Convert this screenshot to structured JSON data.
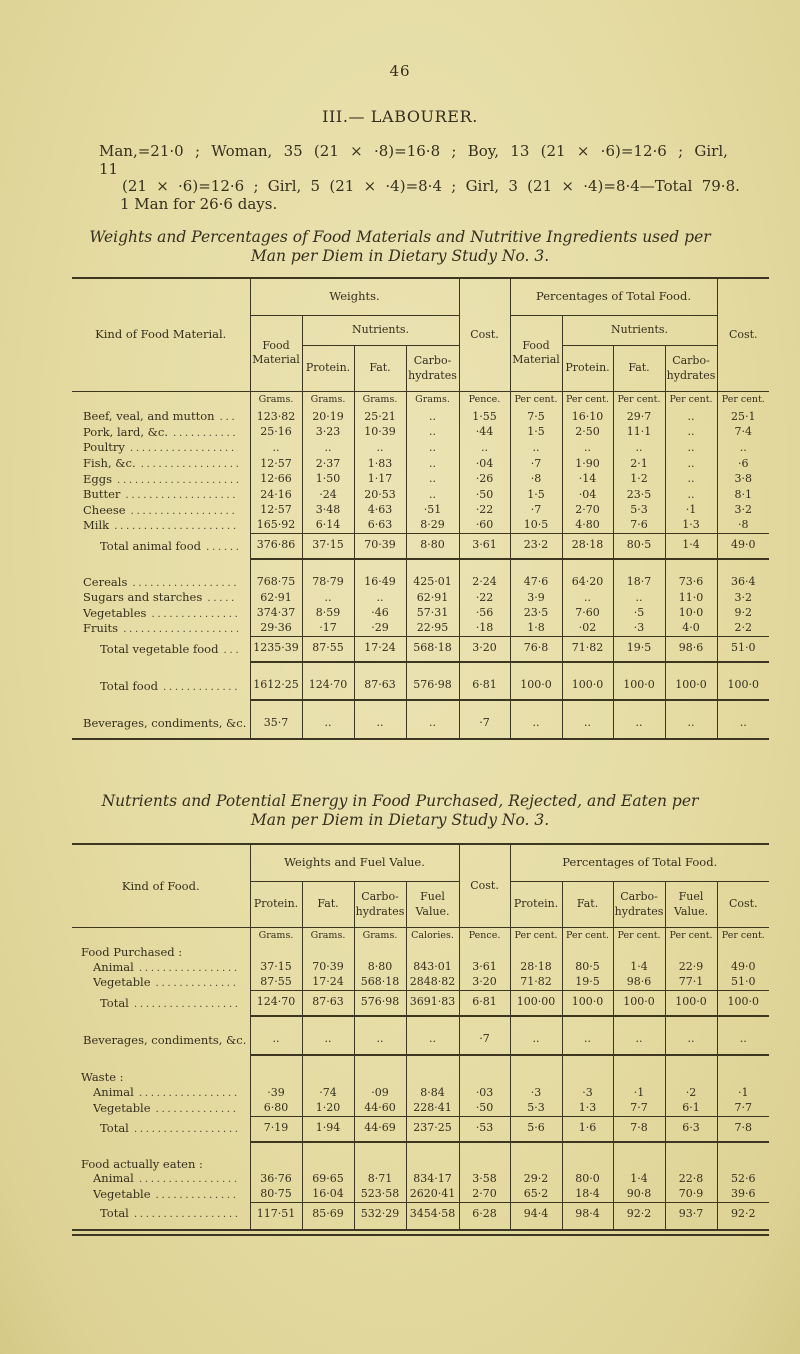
{
  "leader": "....................................................................................",
  "page": {
    "number": "46",
    "section_title": "III.— LABOURER.",
    "intro_lines": [
      "Man,=21·0 ; Woman, 35 (21 × ·8)=16·8 ; Boy, 13 (21 × ·6)=12·6 ; Girl, 11",
      "(21 × ·6)=12·6 ; Girl, 5 (21 × ·4)=8·4 ; Girl, 3 (21 × ·4)=8·4—Total 79·8.",
      "1 Man for 26·6 days."
    ]
  },
  "table1": {
    "caption_lines": [
      "Weights and Percentages of Food Materials and Nutritive Ingredients used per",
      "Man per Diem in Dietary Study No. 3."
    ],
    "header": {
      "kind": "Kind of Food Material.",
      "weights_group": "Weights.",
      "percent_group": "Percentages of Total Food.",
      "cost": "Cost.",
      "food_material": "Food Material",
      "nutrients": "Nutrients.",
      "protein": "Protein.",
      "fat": "Fat.",
      "carbohydrates": "Carbo-hydrates"
    },
    "units": [
      "Grams.",
      "Grams.",
      "Grams.",
      "Grams.",
      "Pence.",
      "Per cent.",
      "Per cent.",
      "Per cent.",
      "Per cent.",
      "Per cent."
    ],
    "rows": [
      {
        "label": "Beef, veal, and mutton",
        "type": "data",
        "values": [
          "123·82",
          "20·19",
          "25·21",
          "..",
          "1·55",
          "7·5",
          "16·10",
          "29·7",
          "..",
          "25·1"
        ]
      },
      {
        "label": "Pork, lard, &c.",
        "type": "data",
        "values": [
          "25·16",
          "3·23",
          "10·39",
          "..",
          "·44",
          "1·5",
          "2·50",
          "11·1",
          "..",
          "7·4"
        ]
      },
      {
        "label": "Poultry",
        "type": "data",
        "values": [
          "..",
          "..",
          "..",
          "..",
          "..",
          "..",
          "..",
          "..",
          "..",
          ".."
        ]
      },
      {
        "label": "Fish, &c.",
        "type": "data",
        "values": [
          "12·57",
          "2·37",
          "1·83",
          "..",
          "·04",
          "·7",
          "1·90",
          "2·1",
          "..",
          "·6"
        ]
      },
      {
        "label": "Eggs",
        "type": "data",
        "values": [
          "12·66",
          "1·50",
          "1·17",
          "..",
          "·26",
          "·8",
          "·14",
          "1·2",
          "..",
          "3·8"
        ]
      },
      {
        "label": "Butter",
        "type": "data",
        "values": [
          "24·16",
          "·24",
          "20·53",
          "..",
          "·50",
          "1·5",
          "·04",
          "23·5",
          "..",
          "8·1"
        ]
      },
      {
        "label": "Cheese",
        "type": "data",
        "values": [
          "12·57",
          "3·48",
          "4·63",
          "·51",
          "·22",
          "·7",
          "2·70",
          "5·3",
          "·1",
          "3·2"
        ]
      },
      {
        "label": "Milk",
        "type": "data",
        "values": [
          "165·92",
          "6·14",
          "6·63",
          "8·29",
          "·60",
          "10·5",
          "4·80",
          "7·6",
          "1·3",
          "·8"
        ]
      },
      {
        "label": "Total animal food",
        "type": "total",
        "indent": "ind",
        "values": [
          "376·86",
          "37·15",
          "70·39",
          "8·80",
          "3·61",
          "23·2",
          "28·18",
          "80·5",
          "1·4",
          "49·0"
        ]
      },
      {
        "label": "Cereals",
        "type": "data",
        "values": [
          "768·75",
          "78·79",
          "16·49",
          "425·01",
          "2·24",
          "47·6",
          "64·20",
          "18·7",
          "73·6",
          "36·4"
        ]
      },
      {
        "label": "Sugars and starches",
        "type": "data",
        "values": [
          "62·91",
          "..",
          "..",
          "62·91",
          "·22",
          "3·9",
          "..",
          "..",
          "11·0",
          "3·2"
        ]
      },
      {
        "label": "Vegetables",
        "type": "data",
        "values": [
          "374·37",
          "8·59",
          "·46",
          "57·31",
          "·56",
          "23·5",
          "7·60",
          "·5",
          "10·0",
          "9·2"
        ]
      },
      {
        "label": "Fruits",
        "type": "data",
        "values": [
          "29·36",
          "·17",
          "·29",
          "22·95",
          "·18",
          "1·8",
          "·02",
          "·3",
          "4·0",
          "2·2"
        ]
      },
      {
        "label": "Total vegetable food",
        "type": "total",
        "indent": "ind",
        "values": [
          "1235·39",
          "87·55",
          "17·24",
          "568·18",
          "3·20",
          "76·8",
          "71·82",
          "19·5",
          "98·6",
          "51·0"
        ]
      },
      {
        "label": "Total food",
        "type": "total2",
        "indent": "ind",
        "values": [
          "1612·25",
          "124·70",
          "87·63",
          "576·98",
          "6·81",
          "100·0",
          "100·0",
          "100·0",
          "100·0",
          "100·0"
        ]
      },
      {
        "label": "Beverages, condiments, &c.",
        "type": "last",
        "values": [
          "35·7",
          "..",
          "..",
          "..",
          "·7",
          "..",
          "..",
          "..",
          "..",
          ".."
        ]
      }
    ]
  },
  "table2": {
    "caption_lines": [
      "Nutrients and Potential Energy in Food Purchased, Rejected, and Eaten per",
      "Man per Diem in Dietary Study No. 3."
    ],
    "header": {
      "kind": "Kind of Food.",
      "weights_group": "Weights and Fuel Value.",
      "percent_group": "Percentages of Total Food.",
      "cost": "Cost.",
      "protein": "Protein.",
      "fat": "Fat.",
      "carbohydrates": "Carbo-hydrates",
      "fuel_value": "Fuel Value."
    },
    "units": [
      "Grams.",
      "Grams.",
      "Grams.",
      "Calories.",
      "Pence.",
      "Per cent.",
      "Per cent.",
      "Per cent.",
      "Per cent.",
      "Per cent."
    ],
    "rows": [
      {
        "label": "Food Purchased :",
        "type": "group",
        "values": null
      },
      {
        "label": "Animal",
        "type": "data",
        "indent": "sub",
        "values": [
          "37·15",
          "70·39",
          "8·80",
          "843·01",
          "3·61",
          "28·18",
          "80·5",
          "1·4",
          "22·9",
          "49·0"
        ]
      },
      {
        "label": "Vegetable",
        "type": "data",
        "indent": "sub",
        "values": [
          "87·55",
          "17·24",
          "568·18",
          "2848·82",
          "3·20",
          "71·82",
          "19·5",
          "98·6",
          "77·1",
          "51·0"
        ]
      },
      {
        "label": "Total",
        "type": "total",
        "indent": "ind",
        "values": [
          "124·70",
          "87·63",
          "576·98",
          "3691·83",
          "6·81",
          "100·00",
          "100·0",
          "100·0",
          "100·0",
          "100·0"
        ]
      },
      {
        "label": "Beverages, condiments, &c.",
        "type": "heavy-below",
        "values": [
          "..",
          "..",
          "..",
          "..",
          "·7",
          "..",
          "..",
          "..",
          "..",
          ".."
        ]
      },
      {
        "label": "Waste :",
        "type": "group",
        "values": null
      },
      {
        "label": "Animal",
        "type": "data",
        "indent": "sub",
        "values": [
          "·39",
          "·74",
          "·09",
          "8·84",
          "·03",
          "·3",
          "·3",
          "·1",
          "·2",
          "·1"
        ]
      },
      {
        "label": "Vegetable",
        "type": "data",
        "indent": "sub",
        "values": [
          "6·80",
          "1·20",
          "44·60",
          "228·41",
          "·50",
          "5·3",
          "1·3",
          "7·7",
          "6·1",
          "7·7"
        ]
      },
      {
        "label": "Total",
        "type": "total",
        "indent": "ind",
        "values": [
          "7·19",
          "1·94",
          "44·69",
          "237·25",
          "·53",
          "5·6",
          "1·6",
          "7·8",
          "6·3",
          "7·8"
        ]
      },
      {
        "label": "Food actually eaten :",
        "type": "group",
        "values": null
      },
      {
        "label": "Animal",
        "type": "data",
        "indent": "sub",
        "values": [
          "36·76",
          "69·65",
          "8·71",
          "834·17",
          "3·58",
          "29·2",
          "80·0",
          "1·4",
          "22·8",
          "52·6"
        ]
      },
      {
        "label": "Vegetable",
        "type": "data",
        "indent": "sub",
        "values": [
          "80·75",
          "16·04",
          "523·58",
          "2620·41",
          "2·70",
          "65·2",
          "18·4",
          "90·8",
          "70·9",
          "39·6"
        ]
      },
      {
        "label": "Total",
        "type": "total-last",
        "indent": "ind",
        "values": [
          "117·51",
          "85·69",
          "532·29",
          "3454·58",
          "6·28",
          "94·4",
          "98·4",
          "92·2",
          "93·7",
          "92·2"
        ]
      }
    ]
  }
}
